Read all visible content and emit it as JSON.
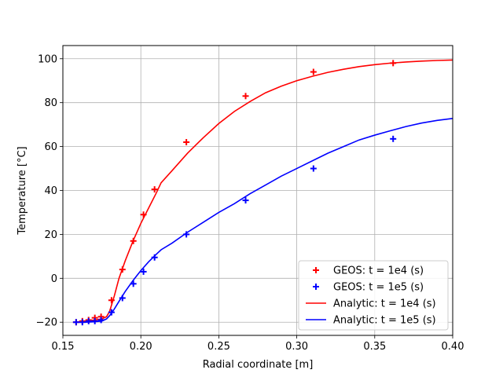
{
  "chart_data": {
    "type": "line",
    "title": "",
    "xlabel": "Radial coordinate [m]",
    "ylabel": "Temperature [°C]",
    "xlim": [
      0.15,
      0.4
    ],
    "ylim": [
      -26,
      106
    ],
    "xticks": [
      0.15,
      0.2,
      0.25,
      0.3,
      0.35,
      0.4
    ],
    "xtick_labels": [
      "0.15",
      "0.20",
      "0.25",
      "0.30",
      "0.35",
      "0.40"
    ],
    "yticks": [
      -20,
      0,
      20,
      40,
      60,
      80,
      100
    ],
    "ytick_labels": [
      "−20",
      "0",
      "20",
      "40",
      "60",
      "80",
      "100"
    ],
    "grid": true,
    "legend_position": "bottom-right",
    "series": [
      {
        "name": "GEOS: t = 1e4 (s)",
        "kind": "scatter",
        "marker": "+",
        "color": "#ff0000",
        "x": [
          0.1585,
          0.1625,
          0.1665,
          0.1705,
          0.1745,
          0.1812,
          0.1882,
          0.1952,
          0.2017,
          0.2088,
          0.2292,
          0.2672,
          0.3107,
          0.3618
        ],
        "y": [
          -20,
          -19.5,
          -19,
          -18,
          -17.5,
          -10,
          4,
          17,
          29,
          40.5,
          62,
          83,
          94,
          98
        ]
      },
      {
        "name": "GEOS: t = 1e5 (s)",
        "kind": "scatter",
        "marker": "+",
        "color": "#0000ff",
        "x": [
          0.1585,
          0.1625,
          0.1665,
          0.1705,
          0.1745,
          0.1812,
          0.1882,
          0.1952,
          0.2017,
          0.2088,
          0.2292,
          0.2672,
          0.3107,
          0.3618
        ],
        "y": [
          -20,
          -20,
          -19.5,
          -19.5,
          -19,
          -15.5,
          -9,
          -2.5,
          3,
          9.5,
          20,
          35.5,
          50,
          63.5
        ]
      },
      {
        "name": "Analytic: t = 1e4 (s)",
        "kind": "line",
        "color": "#ff0000",
        "x": [
          0.158,
          0.165,
          0.17,
          0.175,
          0.178,
          0.18,
          0.183,
          0.186,
          0.19,
          0.195,
          0.2,
          0.205,
          0.21,
          0.213,
          0.22,
          0.23,
          0.24,
          0.25,
          0.26,
          0.27,
          0.28,
          0.29,
          0.3,
          0.31,
          0.32,
          0.33,
          0.34,
          0.35,
          0.36,
          0.37,
          0.38,
          0.39,
          0.4
        ],
        "y": [
          -20,
          -19.5,
          -19,
          -18.5,
          -17.5,
          -15,
          -8,
          0,
          8,
          17,
          25,
          32,
          39,
          43.5,
          49,
          57,
          64,
          70.5,
          76,
          80.5,
          84.5,
          87.5,
          90,
          92,
          93.8,
          95.2,
          96.4,
          97.3,
          98,
          98.5,
          98.9,
          99.2,
          99.4
        ]
      },
      {
        "name": "Analytic: t = 1e5 (s)",
        "kind": "line",
        "color": "#0000ff",
        "x": [
          0.158,
          0.165,
          0.17,
          0.175,
          0.178,
          0.18,
          0.183,
          0.186,
          0.19,
          0.195,
          0.2,
          0.205,
          0.21,
          0.213,
          0.22,
          0.23,
          0.24,
          0.25,
          0.26,
          0.27,
          0.28,
          0.29,
          0.3,
          0.31,
          0.32,
          0.33,
          0.34,
          0.35,
          0.36,
          0.37,
          0.38,
          0.39,
          0.4
        ],
        "y": [
          -20,
          -20,
          -19.8,
          -19.5,
          -18.5,
          -17,
          -14,
          -10.5,
          -6,
          -1,
          3.5,
          7.5,
          11,
          13,
          16,
          21,
          25.5,
          30,
          34,
          38.5,
          42.5,
          46.5,
          50,
          53.5,
          57,
          60,
          63,
          65.2,
          67.2,
          69.1,
          70.7,
          71.9,
          72.8
        ]
      }
    ]
  }
}
